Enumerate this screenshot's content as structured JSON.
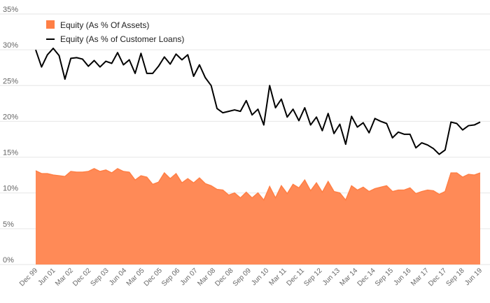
{
  "colors": {
    "area_fill": "#ff8a57",
    "area_line": "#ff7f45",
    "legend_area": "#ff7f45",
    "line": "#000000",
    "grid": "#e6e6e6",
    "tick_text": "#666666"
  },
  "chart_data": {
    "type": "area",
    "title": "",
    "xlabel": "",
    "ylabel": "",
    "ylim": [
      0,
      35
    ],
    "yticks": [
      0,
      5,
      10,
      15,
      20,
      25,
      30,
      35
    ],
    "ytick_labels": [
      "0%",
      "5%",
      "10%",
      "15%",
      "20%",
      "25%",
      "30%",
      "35%"
    ],
    "grid": true,
    "legend_position": "top-left",
    "x_labels": [
      "Dec 99",
      "Jun 01",
      "Mar 02",
      "Dec 02",
      "Sep 03",
      "Jun 04",
      "Mar 05",
      "Dec 05",
      "Sep 06",
      "Jun 07",
      "Mar 08",
      "Dec 08",
      "Sep 09",
      "Jun 10",
      "Mar 11",
      "Dec 11",
      "Sep 12",
      "Jun 13",
      "Mar 14",
      "Dec 14",
      "Sep 15",
      "Jun 16",
      "Mar 17",
      "Dec 17",
      "Sep 18",
      "Jun 19"
    ],
    "series": [
      {
        "name": "Equity (As % Of Assets)",
        "type": "area",
        "values": [
          13.1,
          12.7,
          12.7,
          12.5,
          12.4,
          12.3,
          13.0,
          12.9,
          12.9,
          13.0,
          13.4,
          13.0,
          13.2,
          12.8,
          13.4,
          13.0,
          12.9,
          11.8,
          12.4,
          12.2,
          11.2,
          11.5,
          12.8,
          12.0,
          12.7,
          11.4,
          12.0,
          11.4,
          12.1,
          11.3,
          11.0,
          10.5,
          10.4,
          9.7,
          10.0,
          9.3,
          10.1,
          9.3,
          10.0,
          9.0,
          10.9,
          9.3,
          11.0,
          9.9,
          11.2,
          10.7,
          11.8,
          10.3,
          11.4,
          10.1,
          11.6,
          10.2,
          10.0,
          9.0,
          11.0,
          10.4,
          10.8,
          10.2,
          10.6,
          10.8,
          11.0,
          10.2,
          10.4,
          10.4,
          10.7,
          9.9,
          10.2,
          10.4,
          10.3,
          9.8,
          10.2,
          12.8,
          12.8,
          12.2,
          12.6,
          12.5,
          12.8
        ]
      },
      {
        "name": "Equity (As % of Customer Loans)",
        "type": "line",
        "values": [
          30.0,
          27.6,
          29.3,
          30.2,
          29.2,
          25.9,
          28.8,
          28.9,
          28.7,
          27.7,
          28.5,
          27.6,
          28.4,
          28.1,
          29.6,
          27.9,
          28.6,
          26.7,
          29.5,
          26.7,
          26.7,
          27.7,
          29.0,
          28.0,
          29.4,
          28.6,
          29.3,
          26.3,
          27.9,
          26.1,
          25.0,
          21.8,
          21.2,
          21.4,
          21.6,
          21.4,
          22.9,
          20.9,
          21.7,
          19.5,
          25.0,
          21.9,
          23.1,
          20.6,
          21.7,
          20.1,
          21.9,
          19.5,
          20.6,
          18.7,
          21.1,
          18.3,
          19.6,
          16.8,
          20.7,
          19.2,
          19.8,
          18.4,
          20.4,
          20.0,
          19.7,
          17.7,
          18.5,
          18.2,
          18.2,
          16.3,
          17.0,
          16.7,
          16.2,
          15.4,
          16.0,
          19.9,
          19.7,
          18.8,
          19.4,
          19.5,
          19.9
        ]
      }
    ]
  }
}
